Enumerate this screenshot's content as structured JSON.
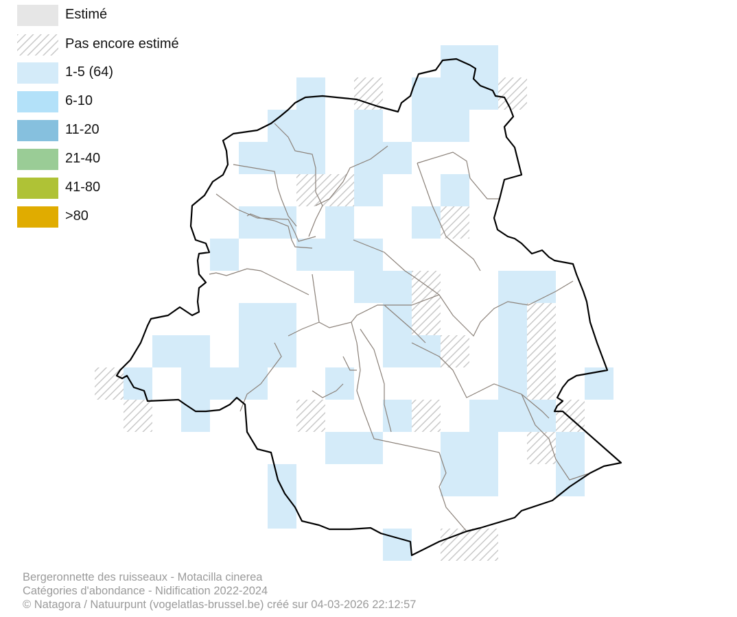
{
  "legend": {
    "items": [
      {
        "label": "Estimé",
        "color": "#e6e6e6",
        "pattern": "solid"
      },
      {
        "label": "Pas encore estimé",
        "color": "#c8c8c8",
        "pattern": "hatched"
      },
      {
        "label": "1-5 (64)",
        "color": "#d4ebf9",
        "pattern": "solid"
      },
      {
        "label": "6-10",
        "color": "#b3e1f9",
        "pattern": "solid"
      },
      {
        "label": "11-20",
        "color": "#86c0de",
        "pattern": "solid"
      },
      {
        "label": "21-40",
        "color": "#9acc96",
        "pattern": "solid"
      },
      {
        "label": "41-80",
        "color": "#afc236",
        "pattern": "solid"
      },
      {
        "label": ">80",
        "color": "#e0ac00",
        "pattern": "solid"
      }
    ]
  },
  "map": {
    "squares_1_5": [
      [
        0,
        12
      ],
      [
        0,
        13
      ],
      [
        1,
        7
      ],
      [
        1,
        11
      ],
      [
        1,
        12
      ],
      [
        1,
        13
      ],
      [
        2,
        6
      ],
      [
        2,
        7
      ],
      [
        2,
        9
      ],
      [
        2,
        11
      ],
      [
        2,
        12
      ],
      [
        3,
        5
      ],
      [
        3,
        6
      ],
      [
        3,
        7
      ],
      [
        3,
        9
      ],
      [
        3,
        10
      ],
      [
        4,
        9
      ],
      [
        4,
        12
      ],
      [
        5,
        5
      ],
      [
        5,
        6
      ],
      [
        5,
        8
      ],
      [
        5,
        11
      ],
      [
        6,
        4
      ],
      [
        6,
        7
      ],
      [
        6,
        8
      ],
      [
        6,
        9
      ],
      [
        7,
        9
      ],
      [
        7,
        10
      ],
      [
        7,
        14
      ],
      [
        7,
        15
      ],
      [
        8,
        5
      ],
      [
        8,
        6
      ],
      [
        8,
        10
      ],
      [
        8,
        14
      ],
      [
        9,
        2
      ],
      [
        9,
        3
      ],
      [
        9,
        5
      ],
      [
        9,
        6
      ],
      [
        9,
        10
      ],
      [
        9,
        11
      ],
      [
        9,
        14
      ],
      [
        10,
        1
      ],
      [
        10,
        3
      ],
      [
        10,
        4
      ],
      [
        10,
        5
      ],
      [
        10,
        8
      ],
      [
        10,
        14
      ],
      [
        10,
        17
      ],
      [
        11,
        3
      ],
      [
        11,
        10
      ],
      [
        11,
        13
      ],
      [
        11,
        14
      ],
      [
        11,
        15
      ],
      [
        12,
        8
      ],
      [
        12,
        9
      ],
      [
        12,
        12
      ],
      [
        12,
        13
      ],
      [
        12,
        16
      ],
      [
        13,
        6
      ],
      [
        13,
        12
      ],
      [
        13,
        13
      ],
      [
        13,
        16
      ],
      [
        14,
        6
      ],
      [
        15,
        10
      ]
    ],
    "squares_not_estimated": [
      [
        1,
        9
      ],
      [
        1,
        14
      ],
      [
        4,
        7
      ],
      [
        4,
        8
      ],
      [
        5,
        12
      ],
      [
        7,
        11
      ],
      [
        8,
        11
      ],
      [
        8,
        15
      ],
      [
        9,
        12
      ],
      [
        9,
        15
      ],
      [
        10,
        0
      ],
      [
        10,
        15
      ],
      [
        11,
        1
      ],
      [
        11,
        7
      ],
      [
        11,
        11
      ],
      [
        11,
        16
      ],
      [
        12,
        15
      ],
      [
        15,
        12
      ],
      [
        15,
        13
      ]
    ]
  },
  "footer": {
    "line1": "Bergeronnette des ruisseaux - Motacilla cinerea",
    "line2": "Catégories d'abondance - Nidification 2022-2024",
    "line3": "© Natagora / Natuurpunt (vogelatlas-brussel.be) créé sur 04-03-2026 22:12:57"
  }
}
